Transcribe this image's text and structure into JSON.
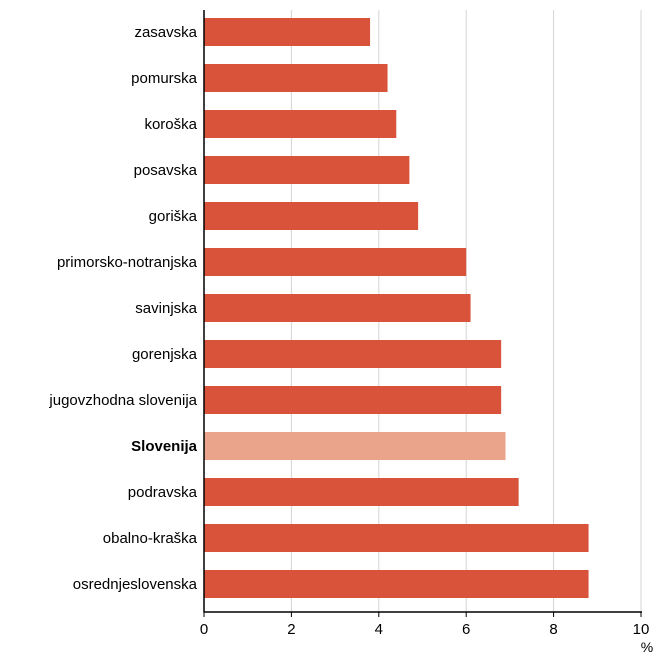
{
  "chart_data": {
    "type": "bar",
    "orientation": "horizontal",
    "categories": [
      "zasavska",
      "pomurska",
      "koroška",
      "posavska",
      "goriška",
      "primorsko-notranjska",
      "savinjska",
      "gorenjska",
      "jugovzhodna slovenija",
      "Slovenija",
      "podravska",
      "obalno-kraška",
      "osrednjeslovenska"
    ],
    "values": [
      3.8,
      4.2,
      4.4,
      4.7,
      4.9,
      6.0,
      6.1,
      6.8,
      6.8,
      6.9,
      7.2,
      8.8,
      8.8
    ],
    "highlight_category": "Slovenija",
    "xlim": [
      0,
      10
    ],
    "xticks": [
      "0",
      "2",
      "4",
      "6",
      "8",
      "10"
    ],
    "xunit": "%",
    "grid": "vertical",
    "colors": {
      "bar": "#d9533b",
      "highlight": "#eba48c",
      "grid": "#d4d4d4",
      "axis": "#000000"
    }
  }
}
